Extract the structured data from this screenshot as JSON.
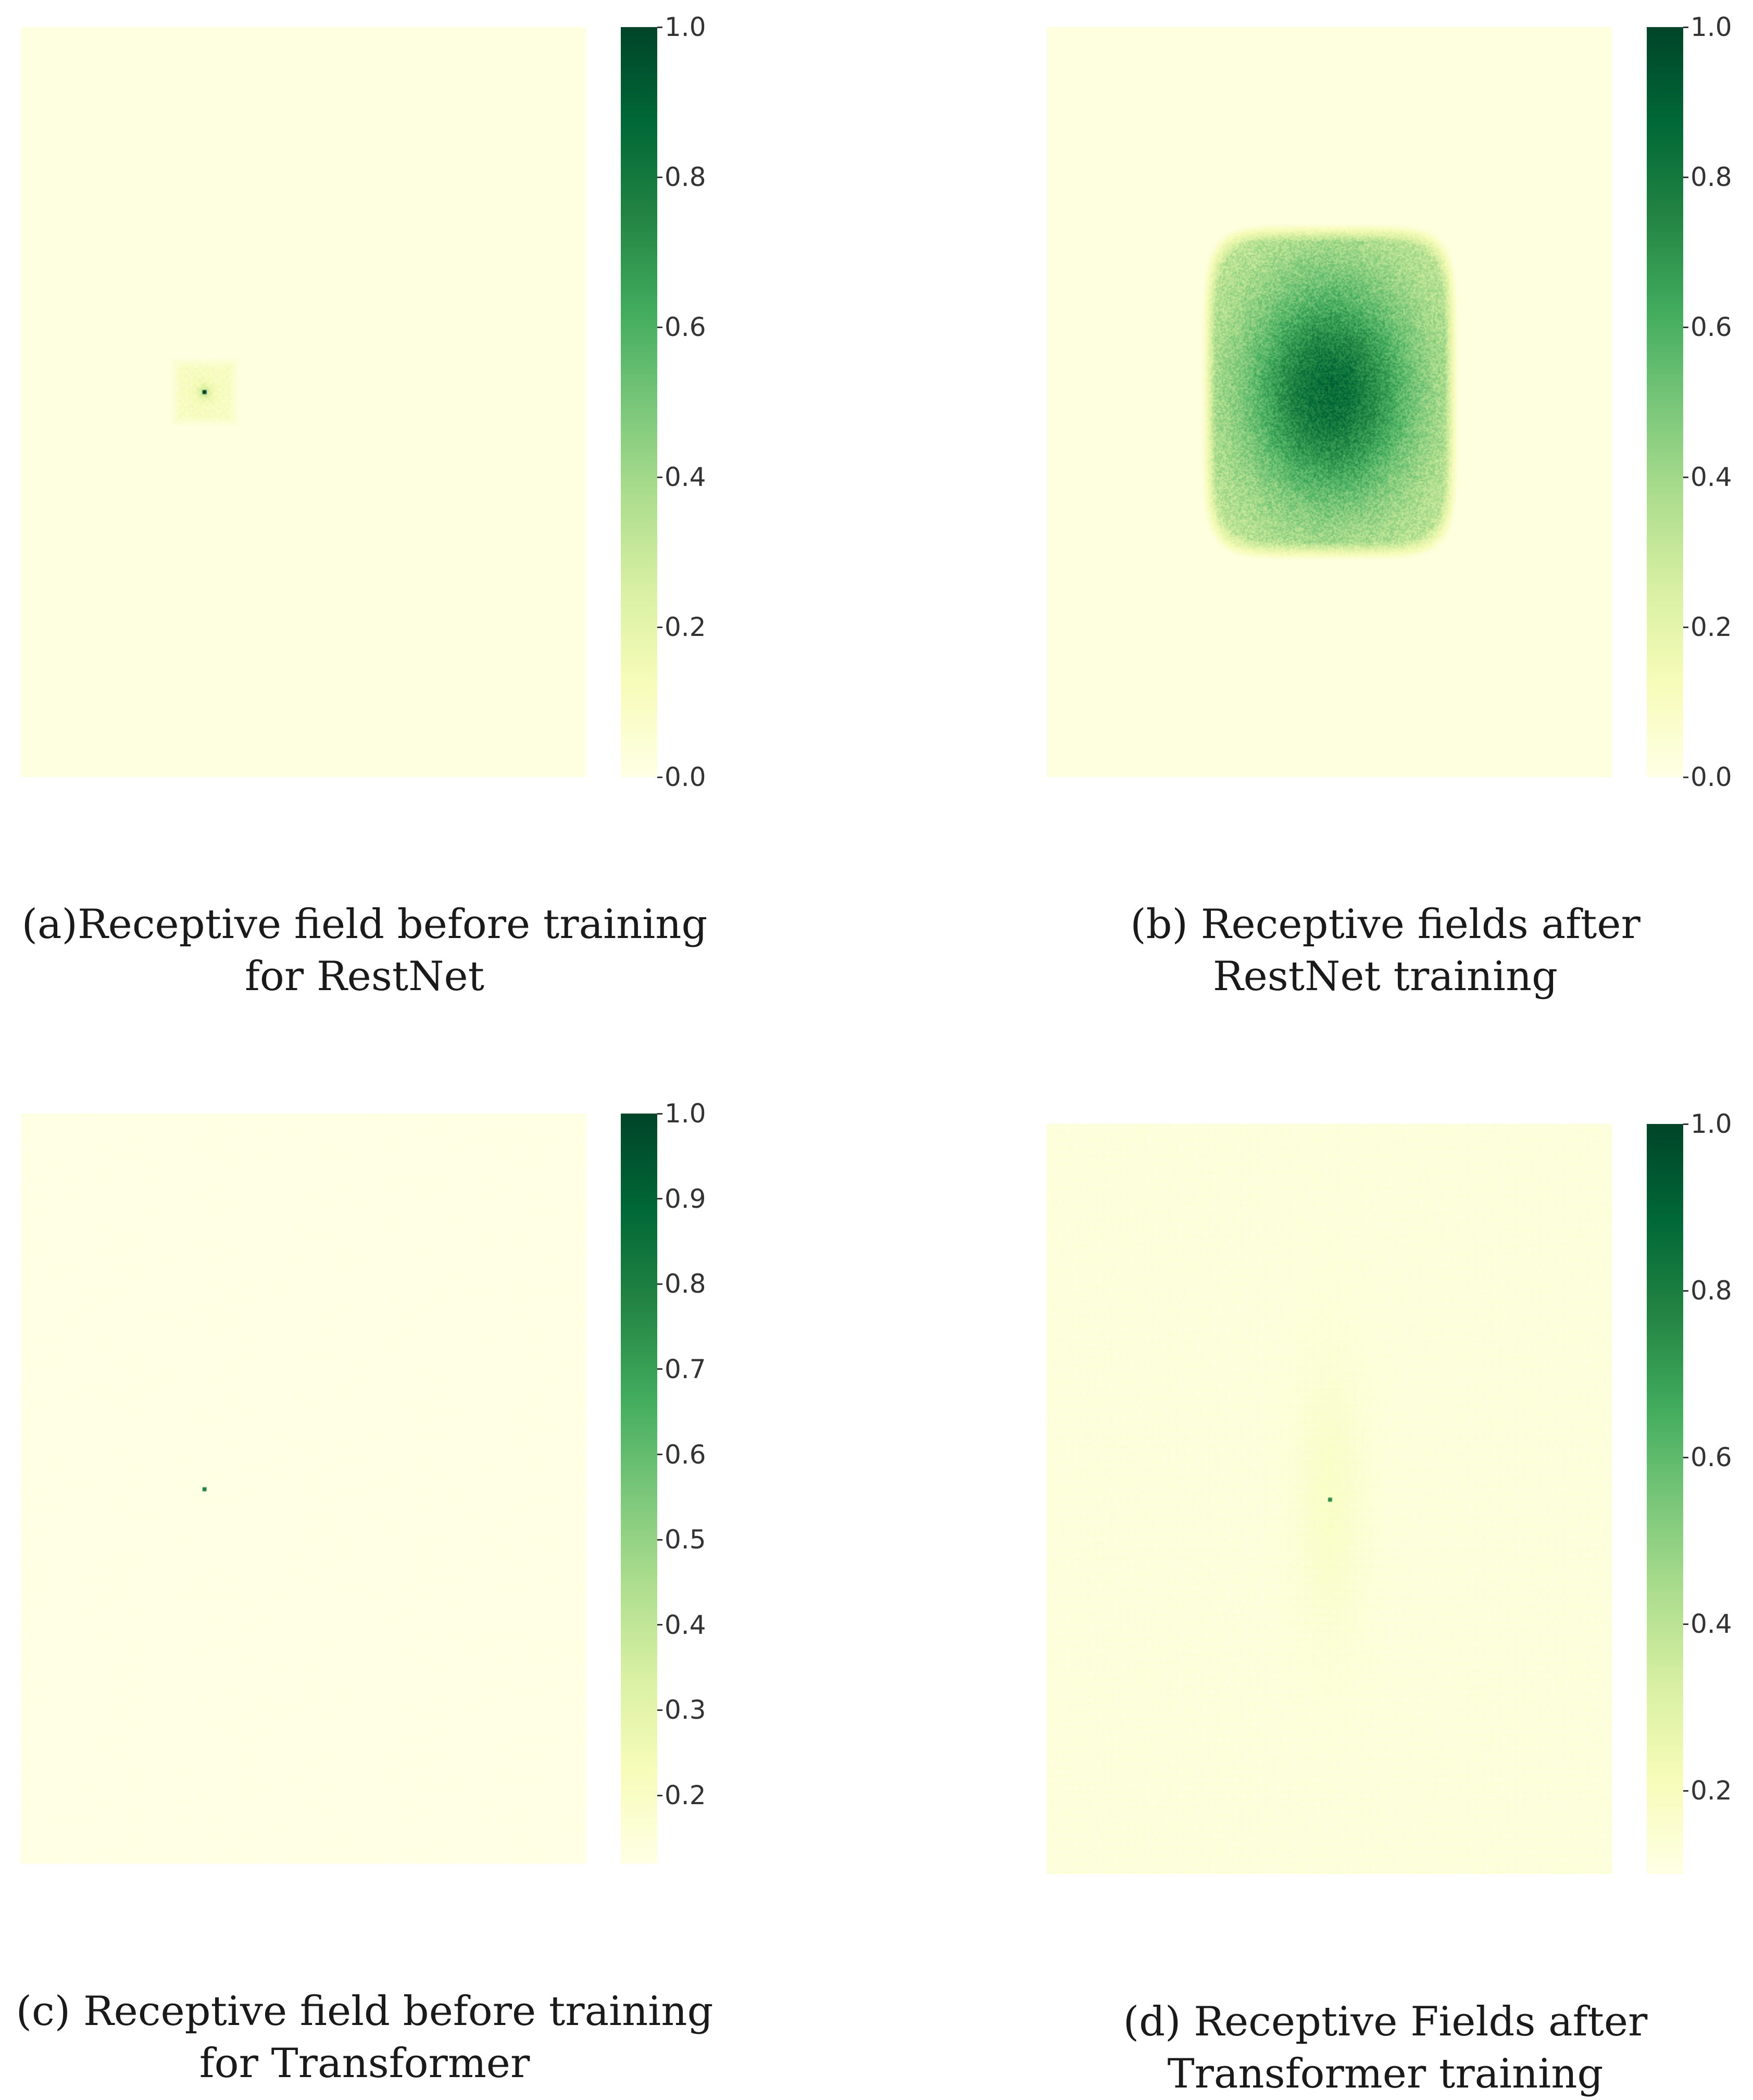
{
  "colors": {
    "colormap": "YlGn",
    "low": "#ffffe5",
    "high": "#00693a"
  },
  "chart_data": [
    {
      "type": "heatmap",
      "colormap": "YlGn",
      "caption_lines": [
        "(a)Receptive field before training",
        "for RestNet"
      ],
      "colorbar_range": [
        0.0,
        1.0
      ],
      "colorbar_ticks": [
        "0.0",
        "0.2",
        "0.4",
        "0.6",
        "0.8",
        "1.0"
      ],
      "background_value": 0.01,
      "pattern": "small diffuse square of low values around a single peak pixel",
      "peak_value": 1.0,
      "region_value": 0.08
    },
    {
      "type": "heatmap",
      "colormap": "YlGn",
      "caption_lines": [
        "(b) Receptive fields after",
        "RestNet training"
      ],
      "colorbar_range": [
        0.0,
        1.0
      ],
      "colorbar_ticks": [
        "0.0",
        "0.2",
        "0.4",
        "0.6",
        "0.8",
        "1.0"
      ],
      "background_value": 0.02,
      "pattern": "large rounded rectangular region with gaussian-like falloff",
      "peak_value": 0.85,
      "edge_value": 0.3
    },
    {
      "type": "heatmap",
      "colormap": "YlGn",
      "caption_lines": [
        "(c) Receptive field before training",
        "for Transformer"
      ],
      "colorbar_range": [
        0.12,
        1.0
      ],
      "colorbar_ticks": [
        "0.2",
        "0.3",
        "0.4",
        "0.5",
        "0.6",
        "0.7",
        "0.8",
        "0.9",
        "1.0"
      ],
      "background_value": 0.12,
      "pattern": "uniform field with a single bright pixel",
      "peak_value": 0.8
    },
    {
      "type": "heatmap",
      "colormap": "YlGn",
      "caption_lines": [
        "(d) Receptive Fields after",
        "Transformer training"
      ],
      "colorbar_range": [
        0.1,
        1.0
      ],
      "colorbar_ticks": [
        "0.2",
        "0.4",
        "0.6",
        "0.8",
        "1.0"
      ],
      "background_value": 0.12,
      "pattern": "near-uniform field with faint grid texture and a single bright pixel",
      "peak_value": 0.75
    }
  ]
}
